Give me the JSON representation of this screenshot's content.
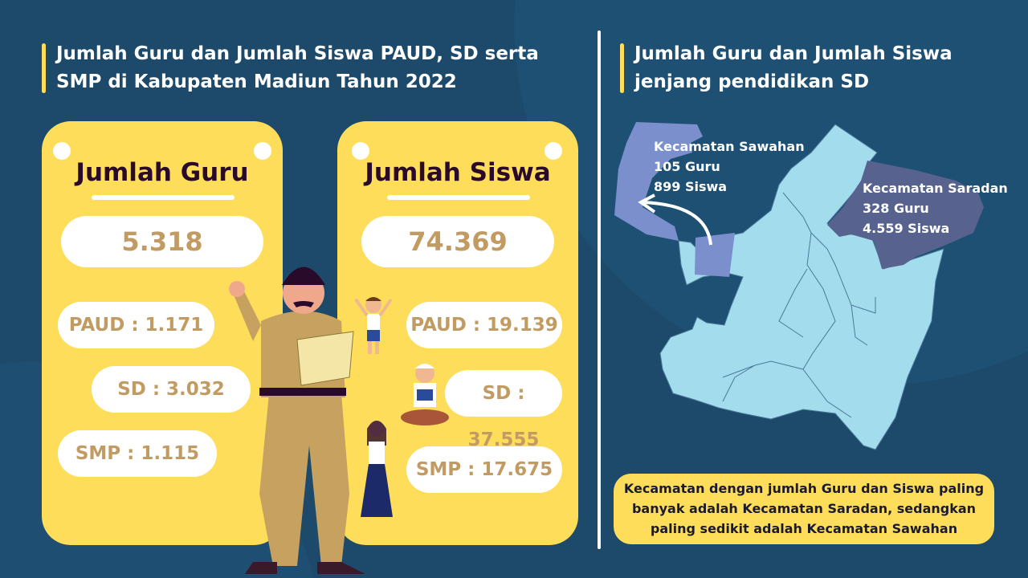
{
  "left_title": "Jumlah Guru dan Jumlah Siswa PAUD, SD serta SMP di Kabupaten Madiun Tahun 2022",
  "right_title": "Jumlah Guru dan Jumlah Siswa jenjang pendidikan SD",
  "guru": {
    "heading": "Jumlah Guru",
    "total": "5.318",
    "paud": "PAUD : 1.171",
    "sd": "SD : 3.032",
    "smp": "SMP : 1.115"
  },
  "siswa": {
    "heading": "Jumlah Siswa",
    "total": "74.369",
    "paud": "PAUD : 19.139",
    "sd": "SD : 37.555",
    "smp": "SMP : 17.675"
  },
  "map": {
    "sawahan": {
      "name": "Kecamatan Sawahan",
      "guru": "105 Guru",
      "siswa": "899 Siswa"
    },
    "saradan": {
      "name": "Kecamatan Saradan",
      "guru": "328 Guru",
      "siswa": "4.559 Siswa"
    }
  },
  "note": "Kecamatan dengan jumlah Guru dan Siswa paling banyak adalah Kecamatan Saradan, sedangkan paling sedikit adalah Kecamatan Sawahan",
  "colors": {
    "background": "#1d4a6b",
    "card": "#fedd5a",
    "value": "#c19b62",
    "map": "#a3dcec",
    "sawahan": "#7a8fcc",
    "saradan": "#57628f"
  }
}
